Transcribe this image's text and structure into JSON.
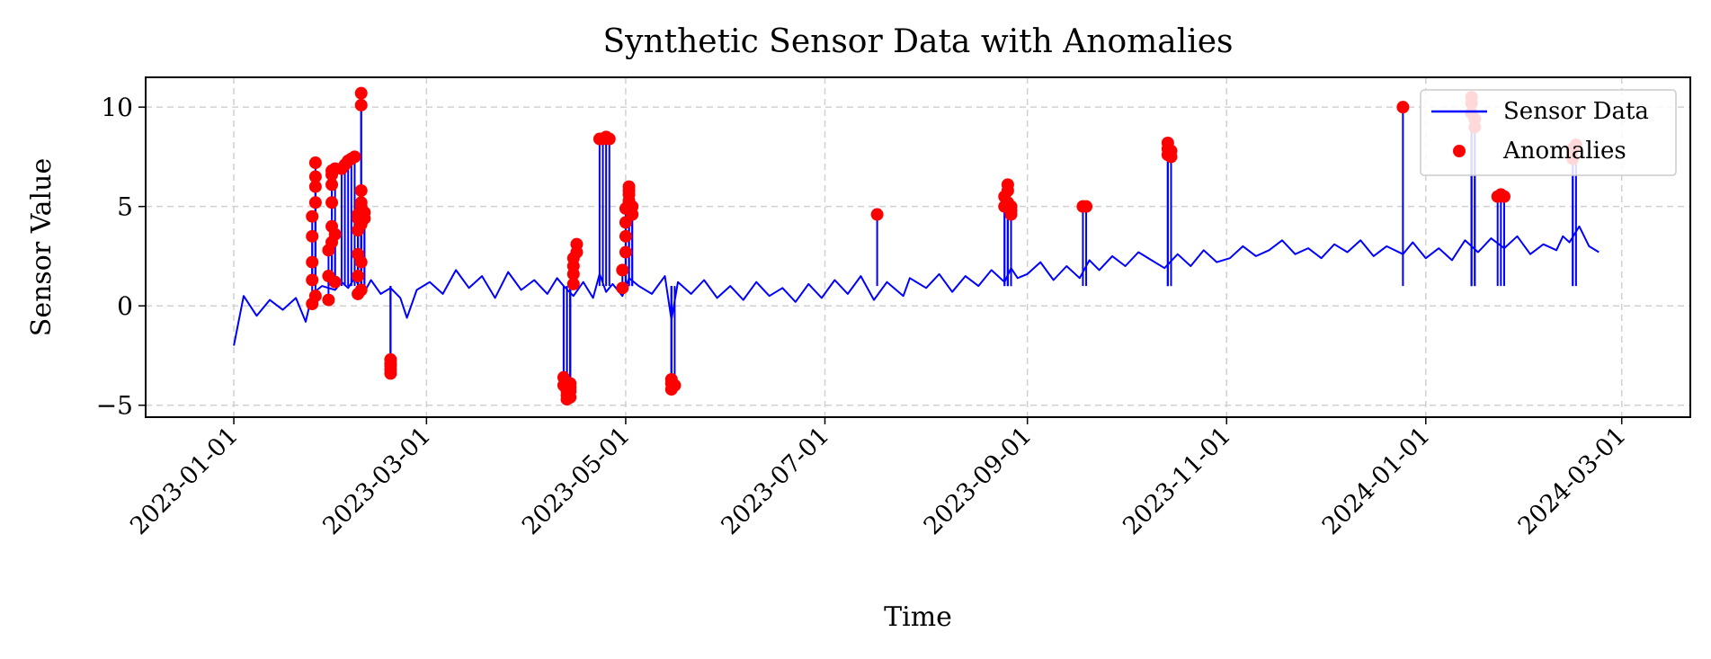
{
  "chart_data": {
    "type": "line",
    "title": "Synthetic Sensor Data with Anomalies",
    "xlabel": "Time",
    "ylabel": "Sensor Value",
    "xlim": [
      "2022-12-05",
      "2024-03-22"
    ],
    "ylim": [
      -5.6,
      11.5
    ],
    "x_ticks": [
      "2023-01-01",
      "2023-03-01",
      "2023-05-01",
      "2023-07-01",
      "2023-09-01",
      "2023-11-01",
      "2024-01-01",
      "2024-03-01"
    ],
    "y_ticks": [
      -5,
      0,
      5,
      10
    ],
    "grid": true,
    "legend_position": "top-right",
    "colors": {
      "line": "#0000ff",
      "marker": "#ff0000",
      "grid": "#d0d0d0"
    },
    "series": [
      {
        "name": "Sensor Data",
        "type": "line",
        "x": [
          "2023-01-01",
          "2023-01-04",
          "2023-01-08",
          "2023-01-12",
          "2023-01-16",
          "2023-01-20",
          "2023-01-23",
          "2023-01-25",
          "2023-01-28",
          "2023-02-01",
          "2023-02-03",
          "2023-02-05",
          "2023-02-07",
          "2023-02-08",
          "2023-02-10",
          "2023-02-12",
          "2023-02-15",
          "2023-02-18",
          "2023-02-21",
          "2023-02-23",
          "2023-02-26",
          "2023-03-02",
          "2023-03-06",
          "2023-03-10",
          "2023-03-14",
          "2023-03-18",
          "2023-03-22",
          "2023-03-26",
          "2023-03-30",
          "2023-04-03",
          "2023-04-07",
          "2023-04-10",
          "2023-04-12",
          "2023-04-15",
          "2023-04-18",
          "2023-04-21",
          "2023-04-23",
          "2023-04-25",
          "2023-04-27",
          "2023-04-30",
          "2023-05-02",
          "2023-05-05",
          "2023-05-09",
          "2023-05-13",
          "2023-05-15",
          "2023-05-17",
          "2023-05-21",
          "2023-05-25",
          "2023-05-29",
          "2023-06-02",
          "2023-06-06",
          "2023-06-10",
          "2023-06-14",
          "2023-06-18",
          "2023-06-22",
          "2023-06-26",
          "2023-06-30",
          "2023-07-04",
          "2023-07-08",
          "2023-07-12",
          "2023-07-16",
          "2023-07-20",
          "2023-07-25",
          "2023-07-27",
          "2023-08-01",
          "2023-08-05",
          "2023-08-09",
          "2023-08-13",
          "2023-08-17",
          "2023-08-21",
          "2023-08-25",
          "2023-08-27",
          "2023-08-29",
          "2023-09-01",
          "2023-09-05",
          "2023-09-09",
          "2023-09-13",
          "2023-09-17",
          "2023-09-20",
          "2023-09-23",
          "2023-09-27",
          "2023-10-01",
          "2023-10-05",
          "2023-10-09",
          "2023-10-13",
          "2023-10-17",
          "2023-10-21",
          "2023-10-25",
          "2023-10-29",
          "2023-11-02",
          "2023-11-06",
          "2023-11-10",
          "2023-11-14",
          "2023-11-18",
          "2023-11-22",
          "2023-11-26",
          "2023-11-30",
          "2023-12-04",
          "2023-12-08",
          "2023-12-12",
          "2023-12-16",
          "2023-12-20",
          "2023-12-25",
          "2023-12-28",
          "2024-01-01",
          "2024-01-05",
          "2024-01-09",
          "2024-01-13",
          "2024-01-17",
          "2024-01-21",
          "2024-01-25",
          "2024-01-29",
          "2024-02-02",
          "2024-02-06",
          "2024-02-10",
          "2024-02-12",
          "2024-02-14",
          "2024-02-17",
          "2024-02-20",
          "2024-02-23"
        ],
        "y": [
          -2.0,
          0.5,
          -0.5,
          0.3,
          -0.2,
          0.4,
          -0.8,
          0.6,
          1.0,
          0.8,
          1.2,
          0.9,
          1.4,
          1.1,
          0.7,
          1.3,
          0.6,
          0.9,
          0.4,
          -0.6,
          0.8,
          1.2,
          0.6,
          1.8,
          0.9,
          1.5,
          0.4,
          1.7,
          0.8,
          1.3,
          0.6,
          1.4,
          1.0,
          0.5,
          1.2,
          0.4,
          1.6,
          0.7,
          1.1,
          0.5,
          1.4,
          1.0,
          0.6,
          1.5,
          -0.7,
          1.2,
          0.6,
          1.3,
          0.4,
          1.0,
          0.3,
          1.2,
          0.5,
          0.9,
          0.2,
          1.1,
          0.4,
          1.3,
          0.6,
          1.5,
          0.3,
          1.2,
          0.5,
          1.4,
          0.9,
          1.6,
          0.7,
          1.5,
          1.0,
          1.8,
          1.2,
          1.9,
          1.4,
          1.6,
          2.2,
          1.3,
          2.0,
          1.4,
          2.3,
          1.8,
          2.5,
          2.0,
          2.7,
          2.3,
          1.9,
          2.6,
          2.0,
          2.8,
          2.2,
          2.4,
          3.0,
          2.5,
          2.8,
          3.3,
          2.6,
          2.9,
          2.4,
          3.1,
          2.7,
          3.3,
          2.5,
          3.0,
          2.6,
          3.2,
          2.4,
          2.9,
          2.3,
          3.3,
          2.7,
          3.4,
          2.9,
          3.5,
          2.6,
          3.1,
          2.8,
          3.5,
          3.2,
          4.0,
          3.0,
          2.7
        ]
      },
      {
        "name": "Anomalies",
        "type": "scatter",
        "x": [
          "2023-01-25",
          "2023-01-25",
          "2023-01-25",
          "2023-01-25",
          "2023-01-25",
          "2023-01-26",
          "2023-01-26",
          "2023-01-26",
          "2023-01-26",
          "2023-01-26",
          "2023-01-30",
          "2023-01-30",
          "2023-01-30",
          "2023-01-31",
          "2023-01-31",
          "2023-01-31",
          "2023-01-31",
          "2023-01-31",
          "2023-01-31",
          "2023-02-01",
          "2023-02-01",
          "2023-02-01",
          "2023-02-03",
          "2023-02-04",
          "2023-02-05",
          "2023-02-06",
          "2023-02-07",
          "2023-02-08",
          "2023-02-08",
          "2023-02-08",
          "2023-02-08",
          "2023-02-08",
          "2023-02-08",
          "2023-02-09",
          "2023-02-09",
          "2023-02-09",
          "2023-02-09",
          "2023-02-09",
          "2023-02-09",
          "2023-02-09",
          "2023-02-09",
          "2023-02-10",
          "2023-02-10",
          "2023-02-18",
          "2023-02-18",
          "2023-02-18",
          "2023-02-18",
          "2023-02-18",
          "2023-04-12",
          "2023-04-12",
          "2023-04-13",
          "2023-04-13",
          "2023-04-13",
          "2023-04-14",
          "2023-04-14",
          "2023-04-14",
          "2023-04-14",
          "2023-04-15",
          "2023-04-15",
          "2023-04-15",
          "2023-04-15",
          "2023-04-16",
          "2023-04-16",
          "2023-04-23",
          "2023-04-24",
          "2023-04-25",
          "2023-04-26",
          "2023-04-30",
          "2023-04-30",
          "2023-05-01",
          "2023-05-01",
          "2023-05-01",
          "2023-05-01",
          "2023-05-02",
          "2023-05-02",
          "2023-05-02",
          "2023-05-02",
          "2023-05-02",
          "2023-05-03",
          "2023-05-03",
          "2023-05-15",
          "2023-05-15",
          "2023-05-15",
          "2023-05-16",
          "2023-07-17",
          "2023-08-25",
          "2023-08-25",
          "2023-08-26",
          "2023-08-26",
          "2023-08-26",
          "2023-08-27",
          "2023-08-27",
          "2023-08-27",
          "2023-09-18",
          "2023-09-19",
          "2023-10-14",
          "2023-10-14",
          "2023-10-14",
          "2023-10-15",
          "2023-10-15",
          "2023-12-25",
          "2024-01-15",
          "2024-01-15",
          "2024-01-15",
          "2024-01-16",
          "2024-01-16",
          "2024-01-23",
          "2024-01-24",
          "2024-01-25",
          "2024-02-15",
          "2024-02-15",
          "2024-02-16"
        ],
        "y": [
          0.1,
          1.3,
          2.2,
          3.5,
          4.5,
          5.2,
          6.0,
          6.5,
          7.2,
          0.5,
          0.3,
          1.5,
          2.8,
          3.2,
          4.0,
          5.2,
          6.1,
          6.8,
          6.6,
          6.9,
          1.2,
          3.6,
          6.9,
          7.1,
          7.3,
          7.4,
          7.5,
          0.6,
          1.5,
          2.6,
          3.8,
          4.6,
          4.4,
          5.2,
          5.8,
          10.7,
          10.1,
          0.8,
          2.2,
          4.1,
          5.0,
          4.7,
          4.4,
          -2.7,
          -3.0,
          -3.2,
          -3.4,
          -2.9,
          -3.6,
          -4.0,
          -4.3,
          -4.7,
          -4.5,
          -4.1,
          -4.6,
          -4.3,
          -3.9,
          1.1,
          1.6,
          2.0,
          2.4,
          2.7,
          3.1,
          8.4,
          8.4,
          8.5,
          8.4,
          0.9,
          1.8,
          2.7,
          3.5,
          4.2,
          4.9,
          5.2,
          5.6,
          6.0,
          5.8,
          5.3,
          4.6,
          5.0,
          -3.7,
          -3.9,
          -4.2,
          -4.0,
          4.6,
          5.0,
          5.5,
          6.1,
          5.8,
          5.2,
          4.8,
          4.6,
          5.0,
          5.0,
          5.0,
          7.6,
          7.9,
          8.2,
          7.5,
          7.8,
          10.0,
          10.5,
          10.2,
          9.7,
          9.0,
          9.4,
          5.5,
          5.6,
          5.5,
          7.4,
          7.9,
          8.1
        ]
      }
    ]
  }
}
